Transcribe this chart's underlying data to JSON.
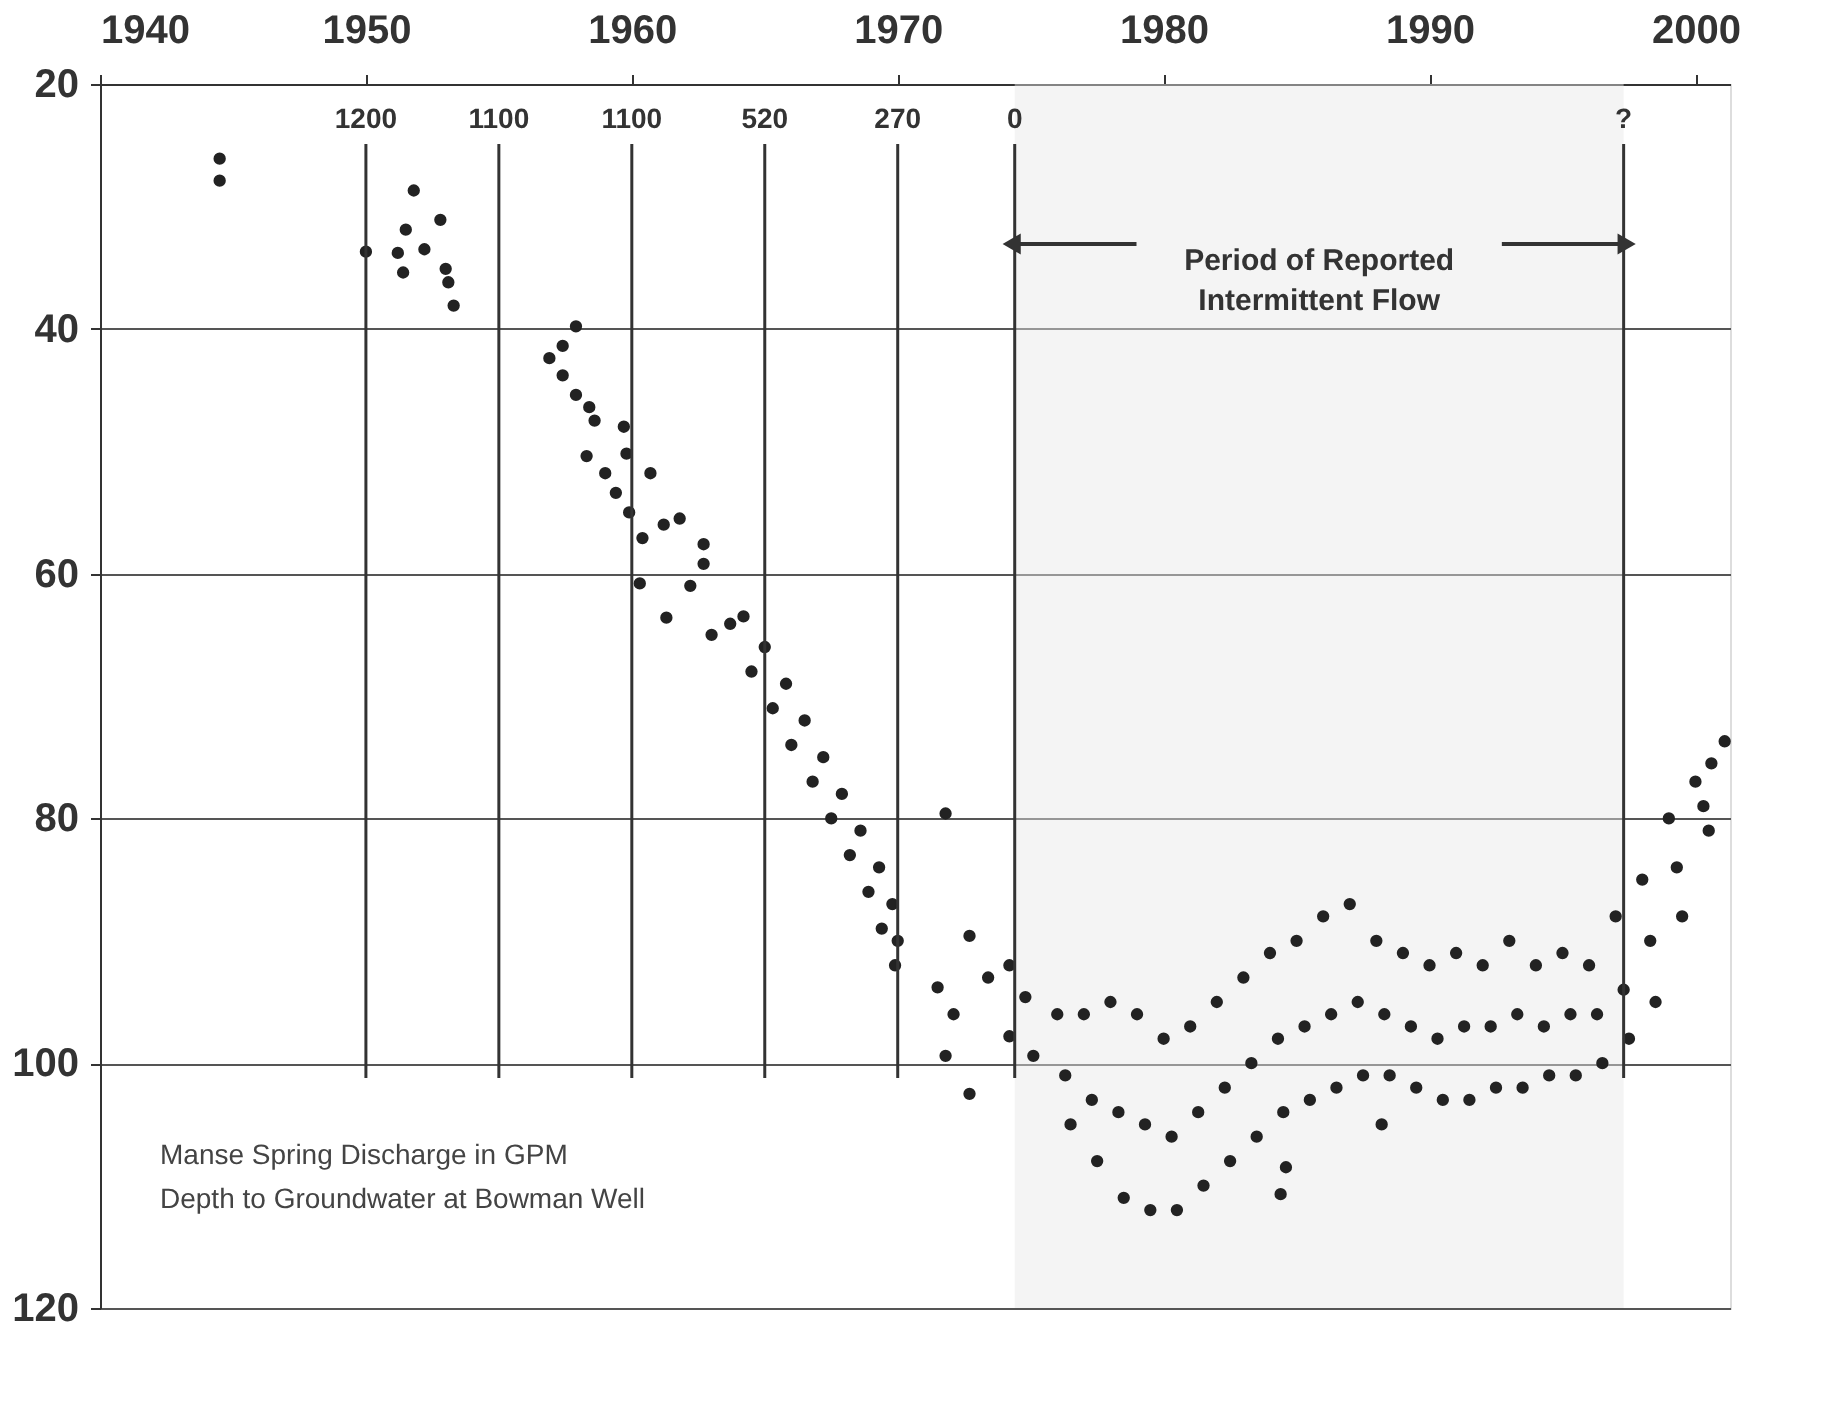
{
  "chart_data": {
    "type": "scatter",
    "xlim": [
      1940,
      2001.3
    ],
    "xticks": [
      1940,
      1950,
      1960,
      1970,
      1980,
      1990,
      2000
    ],
    "ylim": [
      120,
      20
    ],
    "yticks": [
      20,
      40,
      60,
      80,
      100,
      120
    ],
    "grid": "y",
    "marker": "circle",
    "series": [
      {
        "color": "#222222",
        "x": [
          1944.5,
          1944.5,
          1950.0,
          1951.2,
          1951.4,
          1951.5,
          1951.8,
          1952.2,
          1952.8,
          1953.0,
          1953.1,
          1953.3,
          1956.9,
          1957.4,
          1957.4,
          1957.9,
          1957.9,
          1958.4,
          1958.6,
          1958.3,
          1959.0,
          1959.7,
          1959.8,
          1959.4,
          1959.9,
          1960.7,
          1960.4,
          1960.3,
          1961.2,
          1961.8,
          1962.7,
          1961.3,
          1962.7,
          1963.7,
          1962.2,
          1963.0,
          1964.2,
          1964.5,
          1965.0,
          1965.3,
          1965.8,
          1966.0,
          1966.5,
          1966.8,
          1967.2,
          1967.5,
          1967.9,
          1968.2,
          1968.6,
          1968.9,
          1969.3,
          1969.4,
          1969.8,
          1969.9,
          1970.0,
          1971.8,
          1971.5,
          1972.1,
          1971.8,
          1972.7,
          1972.7,
          1973.4,
          1974.2,
          1974.8,
          1974.2,
          1975.1,
          1976.0,
          1976.3,
          1976.5,
          1977.0,
          1977.3,
          1977.5,
          1978.0,
          1978.3,
          1978.5,
          1979.0,
          1979.3,
          1979.5,
          1980.0,
          1980.3,
          1980.5,
          1981.0,
          1981.3,
          1981.5,
          1982.0,
          1982.3,
          1982.5,
          1983.0,
          1983.3,
          1983.5,
          1984.0,
          1984.3,
          1984.5,
          1985.0,
          1985.3,
          1985.5,
          1986.0,
          1986.3,
          1986.5,
          1987.0,
          1987.3,
          1987.5,
          1988.0,
          1988.3,
          1988.5,
          1989.0,
          1989.3,
          1989.5,
          1990.0,
          1990.3,
          1990.5,
          1991.0,
          1991.3,
          1991.5,
          1992.0,
          1992.3,
          1992.5,
          1993.0,
          1993.3,
          1993.5,
          1994.0,
          1994.3,
          1994.5,
          1995.0,
          1995.3,
          1995.5,
          1996.0,
          1996.3,
          1996.5,
          1997.0,
          1997.3,
          1997.5,
          1998.0,
          1998.3,
          1998.5,
          1999.0,
          1999.3,
          1999.5,
          2000.0,
          2000.3,
          2000.5,
          1984.4,
          1984.6,
          1988.2,
          2000.6,
          2001.1
        ],
        "values": [
          26.1,
          27.9,
          33.7,
          33.8,
          35.4,
          31.9,
          28.7,
          33.5,
          31.1,
          35.1,
          36.2,
          38.1,
          42.4,
          41.4,
          43.8,
          39.8,
          45.4,
          46.4,
          47.5,
          50.4,
          51.8,
          48.0,
          50.2,
          53.4,
          55.0,
          51.8,
          57.1,
          60.8,
          56.0,
          55.5,
          57.6,
          63.6,
          59.2,
          64.1,
          61.0,
          65.0,
          63.5,
          68.0,
          66.0,
          71.0,
          69.0,
          74.0,
          72.0,
          77.0,
          75.0,
          80.0,
          78.0,
          83.0,
          81.0,
          86.0,
          84.0,
          89.0,
          87.0,
          92.0,
          90.0,
          79.6,
          93.8,
          96.0,
          99.4,
          89.6,
          102.5,
          93.0,
          92.0,
          94.6,
          97.8,
          99.4,
          96,
          101,
          105,
          96,
          103,
          108,
          95,
          104,
          111,
          96,
          105,
          112,
          98,
          106,
          112,
          97,
          104,
          110,
          95,
          102,
          108,
          93,
          100,
          106,
          91,
          98,
          104,
          90,
          97,
          103,
          88,
          96,
          102,
          87,
          95,
          101,
          90,
          96,
          101,
          91,
          97,
          102,
          92,
          98,
          103,
          91,
          97,
          103,
          92,
          97,
          102,
          90,
          96,
          102,
          92,
          97,
          101,
          91,
          96,
          101,
          92,
          96,
          100,
          88,
          94,
          98,
          85,
          90,
          95,
          80,
          84,
          88,
          77,
          79,
          81,
          110.7,
          108.5,
          105.0,
          75.5,
          73.7
        ]
      }
    ],
    "bands": [
      {
        "axis": "x",
        "from": 1974.4,
        "to": 1997.3,
        "label": "Period of Reported\nIntermittent Flow",
        "color": "#e6e6e6"
      }
    ],
    "ref_lines": [
      {
        "axis": "x",
        "value": 1950
      },
      {
        "axis": "x",
        "value": 1955
      },
      {
        "axis": "x",
        "value": 1960
      },
      {
        "axis": "x",
        "value": 1965
      },
      {
        "axis": "x",
        "value": 1970
      },
      {
        "axis": "x",
        "value": 1974.4
      },
      {
        "axis": "x",
        "value": 1997.3
      }
    ],
    "annotations": [
      "1200",
      "1100",
      "1100",
      "520",
      "270",
      "0",
      "?",
      "Manse Spring Discharge in GPM",
      "Depth to Groundwater at Bowman Well"
    ]
  }
}
